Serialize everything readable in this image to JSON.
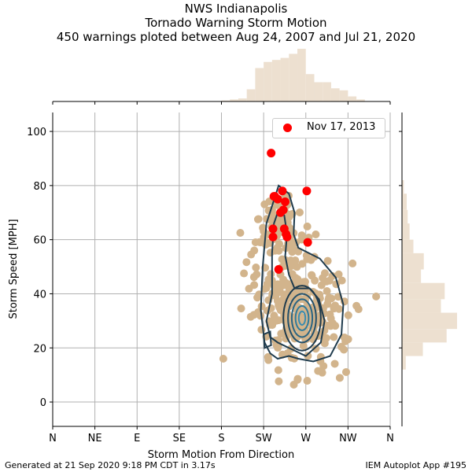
{
  "title": {
    "line1": "NWS Indianapolis",
    "line2": "Tornado Warning Storm Motion",
    "line3": "450 warnings ploted between Aug 24, 2007 and Jul 21, 2020"
  },
  "footer": {
    "left": "Generated at 21 Sep 2020 9:18 PM CDT in 3.17s",
    "right": "IEM Autoplot App #195"
  },
  "chart_data": {
    "type": "scatter",
    "xlabel": "Storm Motion From Direction",
    "ylabel": "Storm Speed [MPH]",
    "xlim": [
      0,
      360
    ],
    "ylim": [
      -9,
      107
    ],
    "x_tick_values": [
      0,
      45,
      90,
      135,
      180,
      225,
      270,
      315,
      360
    ],
    "x_tick_labels": [
      "N",
      "NE",
      "E",
      "SE",
      "S",
      "SW",
      "W",
      "NW",
      "N"
    ],
    "y_ticks": [
      0,
      20,
      40,
      60,
      80,
      100
    ],
    "grid": true,
    "legend": {
      "placement": "top-right",
      "entries": [
        "Nov 17, 2013"
      ]
    },
    "colors": {
      "background": "#d2b48c",
      "highlight": "#ff0000",
      "contour": "#1f3b4d",
      "histogram": "#ede0d0"
    },
    "highlight_points": [
      [
        233,
        92
      ],
      [
        245,
        78
      ],
      [
        237,
        76
      ],
      [
        240,
        75
      ],
      [
        248,
        74
      ],
      [
        246,
        71
      ],
      [
        243,
        70
      ],
      [
        271,
        78
      ],
      [
        235,
        64
      ],
      [
        247,
        64
      ],
      [
        249,
        62
      ],
      [
        250,
        61
      ],
      [
        235,
        61
      ],
      [
        272,
        59
      ],
      [
        241,
        49
      ],
      [
        236,
        76
      ]
    ],
    "x_hist": {
      "bin_edges": [
        180,
        189,
        198,
        207,
        216,
        225,
        234,
        243,
        252,
        261,
        270,
        279,
        288,
        297,
        306,
        315,
        324,
        333
      ],
      "counts": [
        1,
        2,
        3,
        12,
        33,
        39,
        41,
        43,
        47,
        52,
        27,
        19,
        19,
        13,
        11,
        5,
        2
      ]
    },
    "y_hist": {
      "bin_edges": [
        12,
        17,
        22,
        27,
        33,
        38,
        44,
        49,
        55,
        60,
        66,
        71,
        77,
        82
      ],
      "counts": [
        4,
        22,
        47,
        58,
        41,
        45,
        20,
        23,
        12,
        8,
        6,
        5,
        2
      ]
    }
  }
}
